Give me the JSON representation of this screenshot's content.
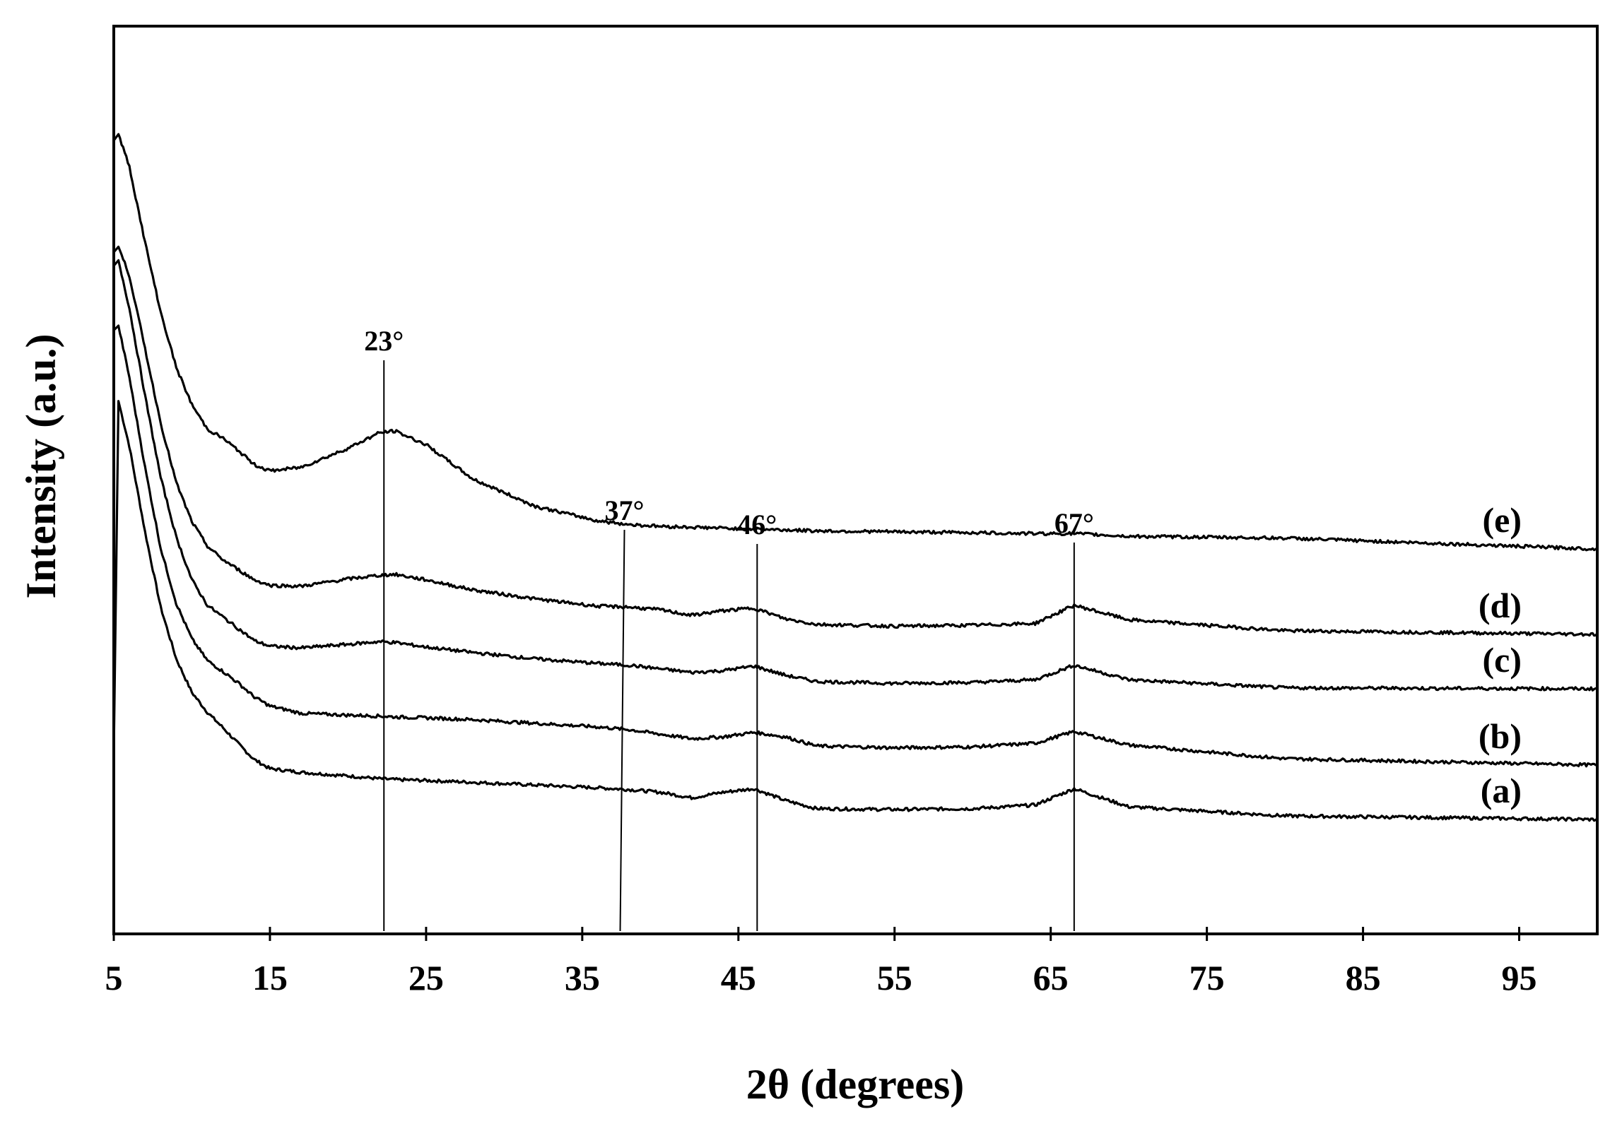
{
  "chart_data": {
    "type": "line",
    "xlabel": "2θ (degrees)",
    "ylabel": "Intensity (a.u.)",
    "xlim": [
      5,
      100
    ],
    "ylim": [
      0,
      100
    ],
    "xticks": [
      "5",
      "15",
      "25",
      "35",
      "45",
      "55",
      "65",
      "75",
      "85",
      "95"
    ],
    "yticks_shown": false,
    "grid": false,
    "legend": "none",
    "line_color": "#000000",
    "x": [
      5,
      5.3,
      6,
      7,
      8,
      9,
      10,
      11,
      12,
      13,
      14,
      15,
      17,
      20,
      22,
      23,
      25,
      28,
      32,
      36,
      38,
      40,
      42,
      44,
      46,
      48,
      50,
      55,
      60,
      64,
      66.5,
      70,
      80,
      100
    ],
    "series": [
      {
        "name": "(a)",
        "values": [
          20,
          58.7,
          53.7,
          44.3,
          36.0,
          30.3,
          26.6,
          24.4,
          22.7,
          20.9,
          19.2,
          18.2,
          17.8,
          17.4,
          17.1,
          17.0,
          16.9,
          16.7,
          16.4,
          16.1,
          15.9,
          15.6,
          15.0,
          15.6,
          16.0,
          14.7,
          13.8,
          13.7,
          13.8,
          14.2,
          16.0,
          14.0,
          13.0,
          12.6
        ]
      },
      {
        "name": "(b)",
        "values": [
          66.5,
          67.0,
          61.3,
          51.4,
          42.5,
          36.4,
          32.5,
          30.1,
          28.9,
          27.6,
          26.1,
          25.1,
          24.3,
          24.1,
          24.0,
          23.9,
          23.8,
          23.6,
          23.2,
          22.8,
          22.5,
          22.0,
          21.5,
          21.7,
          22.2,
          21.7,
          20.7,
          20.5,
          20.6,
          21.0,
          22.3,
          20.8,
          19.3,
          18.6
        ]
      },
      {
        "name": "(c)",
        "values": [
          73.6,
          74.2,
          68.9,
          59.3,
          50.3,
          43.7,
          39.0,
          36.2,
          34.9,
          33.6,
          32.3,
          31.7,
          31.5,
          31.9,
          32.2,
          32.1,
          31.6,
          31.0,
          30.3,
          29.8,
          29.6,
          29.2,
          28.8,
          29.0,
          29.5,
          28.5,
          27.8,
          27.6,
          27.7,
          28.0,
          29.6,
          28.0,
          27.1,
          27.0
        ]
      },
      {
        "name": "(d)",
        "values": [
          75.1,
          75.7,
          72.5,
          64.5,
          56.3,
          49.7,
          45.4,
          42.7,
          41.2,
          40.1,
          39.0,
          38.4,
          38.3,
          39.1,
          39.5,
          39.6,
          39.0,
          37.9,
          36.9,
          36.1,
          36.0,
          35.7,
          35.1,
          35.6,
          35.9,
          34.7,
          34.1,
          33.9,
          34.0,
          34.2,
          36.2,
          34.6,
          33.4,
          33.0
        ]
      },
      {
        "name": "(e)",
        "values": [
          87.4,
          88.1,
          84.5,
          76.2,
          68.5,
          62.4,
          58.3,
          55.6,
          54.6,
          53.2,
          51.7,
          51.0,
          51.4,
          53.5,
          55.2,
          55.4,
          53.9,
          50.1,
          47.1,
          45.5,
          45.1,
          44.9,
          44.8,
          44.7,
          44.6,
          44.5,
          44.4,
          44.3,
          44.2,
          44.1,
          44.1,
          43.8,
          43.6,
          42.4
        ]
      }
    ],
    "reference_lines": [
      {
        "label": "23°",
        "x": 22.3
      },
      {
        "label": "37°",
        "x": 37.7
      },
      {
        "label": "46°",
        "x": 46.2
      },
      {
        "label": "67°",
        "x": 66.5
      }
    ]
  }
}
